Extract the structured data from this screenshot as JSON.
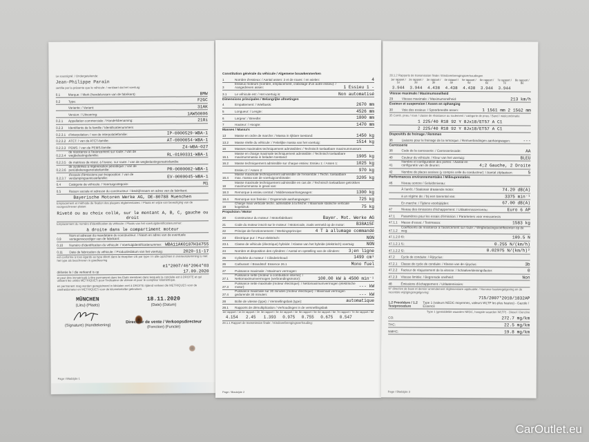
{
  "page1": {
    "intro": "Le soussigné: / Ondergetekende:",
    "signatory": "Jean-Philippe Parain",
    "certify": "certifie par la présente que le véhicule: / verklaart dat het voertuig:",
    "rows": [
      {
        "code": "0.1",
        "label": "Marque: / Merk (handelsnaam van de fabrikant):",
        "value": "BMW"
      },
      {
        "code": "0.2",
        "label": "Type:",
        "value": "F2GC"
      },
      {
        "code": "",
        "label": "Variante: / Variant:",
        "value": "31AK"
      },
      {
        "code": "",
        "label": "Version: / Uitvoering:",
        "value": "1AW50006"
      },
      {
        "code": "0.2.1",
        "label": "Appellation commerciale: / Handelsbenaming:",
        "value": "218i"
      },
      {
        "code": "0.2.3",
        "label": "Identifiants de la famille / Identificatienummers",
        "value": ""
      },
      {
        "code": "0.2.3.1",
        "label": "d'interpolation: / van de interpolatiefamilie:",
        "value": "IP-0000529-WBA-1"
      },
      {
        "code": "0.2.3.2",
        "label": "ATCT: / van de ATCT-familie:",
        "value": "AT-0000054-WBA-1"
      },
      {
        "code": "0.2.3.3",
        "label": "PEMS: / van de PEMS-familie:",
        "value": "Z4-WBA-027"
      },
      {
        "code": "0.2.3.4",
        "label": "de résistance à l'avancement sur route: / van de wegbelastingsfamilie:",
        "value": "RL-0100331-WBA-1"
      },
      {
        "code": "0.2.3.5",
        "label": "de matrices de résist. à l'avanc. sur route: / van de wegbelastingsmatrixfamilie:",
        "value": ""
      },
      {
        "code": "0.2.3.6",
        "label": "de systèmes à régénération périodique: / van de periodiekeregeneratiefamilie:",
        "value": "PR-0000002-WBA-1"
      },
      {
        "code": "0.2.3.7",
        "label": "d'essais d'émissions par évaporation: / van de verdampingsemissiefamilie:",
        "value": "EV-0000045-WBA-1"
      },
      {
        "code": "0.4",
        "label": "Catégorie de véhicule: / Voertuigcategorie:",
        "value": "M1"
      },
      {
        "code": "0.5",
        "label": "Raison sociale et adresse du constructeur: / Bedrijfsnaam en adres van de fabrikant:",
        "value": ""
      }
    ],
    "manufacturer": "Bayerische Motoren Werke AG, DE-80788 Muenchen",
    "plate_label": "Emplacement et méthode de fixation des plaques réglementaires: / Plaats en wijze van bevestiging van de voorgeschreven platen:",
    "plate_value": "Riveté ou au choix collé, sur le montant A, B, C, gauche ou droit",
    "vin_location_label": "Emplacement du numéro d'identification du véhicule: / Plaats van het voertuigidentificatienummer:",
    "vin_location_value": "à droite dans le compartiment moteur",
    "rows2": [
      {
        "code": "0.9",
        "label": "Nom et adresse du mandataire du constructeur: / Naam en adres van de eventuele vertegenwoordiger van de fabrikant:",
        "value": ""
      },
      {
        "code": "0.10",
        "label": "Numéro d'identification du véhicule: / Voertuigidentificatienummer:",
        "value": "WBA11AK0107H34755"
      },
      {
        "code": "0.11",
        "label": "Date de fabrication du véhicule: / Productiedatum van het voertuig:",
        "value": "2020-11-17"
      }
    ],
    "conform_text": "est conforme à tous égards au type décrit dans la réception UE par type / in alle opzichten in overeenstemming is met het type als beschreven in goedkeuring",
    "approval_number": "e1*2007/46*2064*03",
    "issued_label": "délivrée le / die verleend is op",
    "issued_date": "17.09.2020",
    "register_text_fr": "et peut être immatriculé à titre permanent dans les États membres dans lesquels la conduite est à DROITE et qui utilisent les unités MÉTRIQUES pour l'indicateur de vitesse et pour le compteur kilométrique.",
    "register_text_nl": "en permanent mag worden geregistreerd in lidstaten met à DROITE rijdend verkeer die METRIQUES voor de snelheidsmeter en METRIQUES voor de kilometerteller gebruiken.",
    "place": "MÜNCHEN",
    "place_label": "(Lieu) (Plaats)",
    "date": "18.11.2020",
    "date_label": "(Date) (Datum)",
    "signature_label": "(Signature) (Handtekening)",
    "function": "Directeur de vente / Verkoopsdirecteur",
    "function_label": "(Fonction) (Functie)",
    "footer": "Page / Bladzijde 1"
  },
  "page2": {
    "section1": "Constitution générale du véhicule / Algemene bouwkenmerken",
    "rows": [
      {
        "code": "1",
        "label": "Nombre d'essieux: / Aantal assen:  2   et de roues: / en wielen:",
        "value": "4"
      },
      {
        "code": "3",
        "label": "Essieux moteurs (nombre, emplacement, crabotage d'un autre essieu): / Aangedreven assen:",
        "value": "1   Essieu 1   -"
      },
      {
        "code": "3.1",
        "label": "Le véhicule est: / Het voertuig is:",
        "value": "Non automatisé"
      }
    ],
    "section2": "Dimensions principales / Belangrijke afmetingen",
    "dims": [
      {
        "code": "4",
        "label": "Empattement: / Wielbasis:",
        "value": "2670 mm"
      },
      {
        "code": "5",
        "label": "Longueur: / Lengte:",
        "value": "4526 mm"
      },
      {
        "code": "6",
        "label": "Largeur: / Breedte:",
        "value": "1800 mm"
      },
      {
        "code": "7",
        "label": "Hauteur: / Hoogte:",
        "value": "1470 mm"
      }
    ],
    "section3": "Masses / Massa's",
    "masses": [
      {
        "code": "13",
        "label": "Masse en ordre de marche: / Massa in rijklare toestand:",
        "value": "1450 kg"
      },
      {
        "code": "13.2",
        "label": "Masse réelle du véhicule: / Feitelijke massa van het voertuig:",
        "value": "1514 kg"
      },
      {
        "code": "16",
        "label": "Masses maximales techniquement admissibles: / Technisch toelaatbare maximummassa's",
        "value": ""
      },
      {
        "code": "16.1",
        "label": "Masse en charge maximale techniquement admissible: / Technisch toelaatbare maximummassa in beladen toestand:",
        "value": "1905 kg"
      },
      {
        "code": "16.2",
        "label": "Masse techniquement admissible sur chaque essieu: Essieu 1: / Assen 1:",
        "value": "1025 kg"
      },
      {
        "code": "",
        "label": "Essieu 2: / Assen 2:",
        "value": "970 kg"
      },
      {
        "code": "16.4",
        "label": "Masse maximale techniquement admissible de l'ensemble: / Techn. toelaatbare max. massa van de voertuigcombinatie:",
        "value": "3205 kg"
      },
      {
        "code": "18",
        "label": "Masse maximale techniquement admissible en cas de: / Technisch toelaatbare getrokken maximummassa in geval van:",
        "value": ""
      },
      {
        "code": "18.3",
        "label": "Remorque à essieu central: / Middenasaanhangwagen:",
        "value": "1300 kg"
      },
      {
        "code": "18.4",
        "label": "Remorque non freinée: / Ongeremde aanhangwagen:",
        "value": "725 kg"
      },
      {
        "code": "19",
        "label": "Charge maxi verticale techn. admissible à la flèche: / Maximale statische verticale kogeldruk:",
        "value": "75 kg"
      }
    ],
    "section4": "Propulsion / Motor",
    "engine": [
      {
        "code": "20",
        "label": "Constructeur du moteur: / Motorfabrikant:",
        "value": "Bayer. Mot. Werke AG"
      },
      {
        "code": "21",
        "label": "Code du moteur inscrit sur le moteur: / Motorcode, zoals vermeld op de motor:",
        "value": "B38A15F"
      },
      {
        "code": "22",
        "label": "Principe de fonctionnement: / Werkingsprincipe:",
        "value": "4 T à allumage commandé"
      },
      {
        "code": "23",
        "label": "Électrique pur: / Puur elektrisch:",
        "value": "NON"
      },
      {
        "code": "23.1",
        "label": "Classe de véhicule (électrique) hybride: / Klasse van het hybride (elektrisch) voertuig:",
        "value": "NON"
      },
      {
        "code": "24",
        "label": "Nombre et disposition des cylindres: / Aantal en opstelling van de cilinders:",
        "value": "3;en ligne"
      },
      {
        "code": "25",
        "label": "Cylindrée du moteur: / Cilinderinhoud:",
        "value": "1499 cm³"
      },
      {
        "code": "26",
        "label": "Carburant: / Brandstof:  Essence   26.1",
        "value": "Mono fuel"
      },
      {
        "code": "27",
        "label": "Puissance maximale: / Maximum vermogen:",
        "value": ""
      },
      {
        "code": "27.1",
        "label": "Puissance nette (moteur à combustion interne): / Nettomaximumvermogen (verbrandingsmotor):",
        "value": "100.00 kW à 4500 min⁻¹"
      },
      {
        "code": "27.3",
        "label": "Puissance nette maximale (moteur électrique): / Nettomaximumvermogen (elektrische motor):",
        "value": "--- kW"
      },
      {
        "code": "27.4",
        "label": "Puissance maximale sur 30 minutes (moteur électrique): / Maximaal vermogen gedurende 30 minuten:",
        "value": "--- kW"
      },
      {
        "code": "28",
        "label": "Boîte de vitesse (type): / Versnellingsbak (type):",
        "value": "automatique"
      },
      {
        "code": "28.1",
        "label": "Rapports de démultiplication / Verhoudingen in de versnellingsbak",
        "value": ""
      }
    ],
    "gear_headers": [
      "1er rapport / 1e",
      "2e rapport / 2e",
      "3e rapport / 3e",
      "4e rapport / 4e",
      "5e rapport / 5e",
      "6e rapport / 6e",
      "7e rapport / 7e",
      "8e rapport / 8e"
    ],
    "gear_ratios": [
      "4.154",
      "2.45",
      "1.393",
      "0.975",
      "0.755",
      "0.675",
      "0.547",
      ""
    ],
    "final_drive_label": "28.1.1 Rapport de transmission finale: / Eindoverbrengingsverhouding:",
    "footer": "Page / Bladzijde 2"
  },
  "page3": {
    "final_label": "28.1.2 Rapports de transmission finale / Eindoverbrengingsverhoudingen",
    "final_ratios": [
      "3.944",
      "3.944",
      "4.438",
      "4.438",
      "4.438",
      "3.944",
      "3.944",
      ""
    ],
    "section_speed": "Vitesse maximale / Maximumsnelheid",
    "speed": {
      "code": "29",
      "label": "Vitesse maximale: / Maximumsnelheid:",
      "value": "213 km/h"
    },
    "section_axles": "Essieux et suspension / Assen en ophanging",
    "track": {
      "code": "30",
      "label": "Voie des essieux: / Spoorbreedte assen:",
      "value": "1  1561 mm   2  1562 mm"
    },
    "tyres_label": "35  Comb. pneu / roue / classe de résistance au roulement / catégorie de pneu / Band / wielcombinatie",
    "tyres": [
      "1  225/40 R18 92 Y    8Jx18/ET57    A    C1",
      "2  225/40 R18 92 Y    8Jx18/ET57    A    C1"
    ],
    "section_brakes": "Dispositifs de freinage / Remmen",
    "brakes": {
      "code": "36",
      "label": "Liaisons pour le freinage de la remorque: / Remverbindingen aanhangwagen:",
      "value": "---"
    },
    "section_body": "Carrosserie",
    "body": [
      {
        "code": "38",
        "label": "Code de la carrosserie: / Carrosseriecode:",
        "value": "AA"
      },
      {
        "code": "40",
        "label": "Couleur du véhicule: / Kleur van het voertuig:",
        "value": "BLEU"
      },
      {
        "code": "41",
        "label": "Nombre et configuration des portes: / Aantal en configuratie van de deuren:",
        "value": "4;2 Gauche, 2 Droite"
      },
      {
        "code": "42",
        "label": "Nombre de places assises (y compris celle du conducteur): / Aantal zitplaatsen:",
        "value": "5"
      }
    ],
    "section_env": "Performances environnementales / Milieuprestaties",
    "env": [
      {
        "code": "46",
        "label": "Niveau sonore / Geluidsniveau:",
        "value": ""
      },
      {
        "code": "",
        "label": "À l'arrêt: / Stationair draaiende motor:",
        "value": "74.20 dB(A)"
      },
      {
        "code": "",
        "label": "à un régime de: / bij een toerental van:",
        "value": "3375 min⁻¹"
      },
      {
        "code": "",
        "label": "En marche: / Tijdens voorbijrijden:",
        "value": "67.00 dB(A)"
      },
      {
        "code": "47",
        "label": "Niveau des émissions d'échappement: / Uitlaatemissieniveau:",
        "value": "Euro 6 AP"
      },
      {
        "code": "47.1",
        "label": "Paramètres pour les essais d'émission: / Parameters voor emissietests",
        "value": ""
      },
      {
        "code": "47.1.1",
        "label": "Masse d'essai: / Testmassa:",
        "value": "1583 kg"
      },
      {
        "code": "47.1.2",
        "label": "Coefficients de résistance à l'avancement sur route: / Wegbelastingscoëfficiënten op de weg:",
        "value": ""
      },
      {
        "code": "47.1.2.0",
        "label": "f0:",
        "value": "109.5 N"
      },
      {
        "code": "47.1.2.1",
        "label": "f1:",
        "value": "0.255 N/(km/h)"
      },
      {
        "code": "47.1.2.2",
        "label": "f2:",
        "value": "0.02975 N/(km/h)²"
      },
      {
        "code": "47.2",
        "label": "Cycle de conduite: / Rijcyclus:",
        "value": ""
      },
      {
        "code": "47.2.1",
        "label": "Classe de cycle de conduite: / Klasse van de rijcyclus:",
        "value": "3b"
      },
      {
        "code": "47.2.2",
        "label": "Facteur de réajustement de la vitesse: / Schaalverkleiningsfactor:",
        "value": "0"
      },
      {
        "code": "47.2.3",
        "label": "Vitesse limitée: / Begrensde snelheid:",
        "value": "Non"
      },
      {
        "code": "48",
        "label": "Émissions d'échappement: / Uitlaatemissies:",
        "value": ""
      }
    ],
    "directive_label": "N° directive de base et dernier amendement réglementaire applicable: / Nummer basisregelgeving en de recentste wijzigingsregelgeving:",
    "directive": "715/2007*2018/1832AP",
    "procedure_label": "1.2 Procédure / 1.2 Testprocedure",
    "procedure_type1": "Type 1 (valeurs NEDC moyennes, valeurs WLTP les plus hautes) - Gazole / Essence",
    "procedure_type1_nl": "Type 1 (gemiddelde waarden NEDC, hoogste waarden WLTP) - Diesel / Benzine",
    "emissions": [
      {
        "label": "CO:",
        "value": "272.7 mg/km"
      },
      {
        "label": "THC:",
        "value": "22.5 mg/km"
      },
      {
        "label": "NMHC:",
        "value": "19.8 mg/km"
      }
    ],
    "footer": "Page / Bladzijde 3"
  },
  "watermark": "CarOutlet.eu"
}
